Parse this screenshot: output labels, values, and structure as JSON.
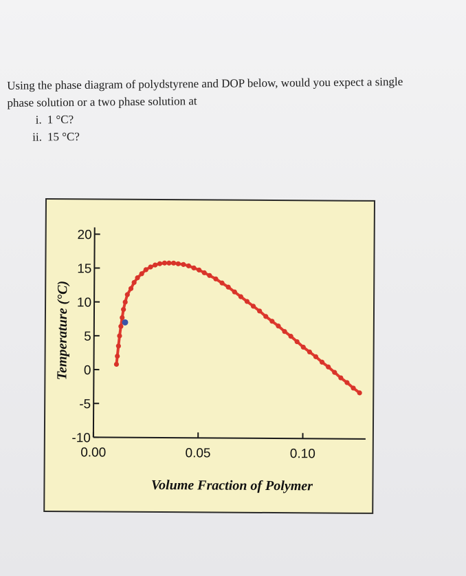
{
  "question": {
    "line1": "Using the phase diagram of polydstyrene and DOP below, would you expect a single",
    "line2": "phase solution or a two phase solution at",
    "items": [
      {
        "num": "i.",
        "text": "1 °C?"
      },
      {
        "num": "ii.",
        "text": "15 °C?"
      }
    ]
  },
  "colors": {
    "curve": "#e03a2e",
    "marker": "#d8342a",
    "highlight_point": "#3a55a8",
    "plot_background": "#f7f2c6"
  },
  "chart_data": {
    "type": "line",
    "title": "",
    "xlabel": "Volume Fraction of Polymer",
    "ylabel": "Temperature (°C)",
    "xlim": [
      0.0,
      0.13
    ],
    "ylim": [
      -10,
      21
    ],
    "x_tick_labels": [
      "0.00",
      "0.05",
      "0.10"
    ],
    "x_tick_values": [
      0.0,
      0.05,
      0.1
    ],
    "y_tick_labels": [
      "20",
      "15",
      "10",
      "5",
      "0",
      "-5",
      "-10"
    ],
    "y_tick_values": [
      20,
      15,
      10,
      5,
      0,
      -5,
      -10
    ],
    "series": [
      {
        "x": [
          0.0108,
          0.0112,
          0.0117,
          0.0122,
          0.0128,
          0.0134,
          0.014,
          0.0148,
          0.0158,
          0.0175,
          0.019,
          0.0206,
          0.0226,
          0.0246,
          0.0268,
          0.029,
          0.0312,
          0.0335,
          0.0356,
          0.0378,
          0.04,
          0.0425,
          0.045,
          0.0475,
          0.05,
          0.0525,
          0.055,
          0.058,
          0.061,
          0.064,
          0.067,
          0.07,
          0.073,
          0.076,
          0.079,
          0.082,
          0.085,
          0.088,
          0.091,
          0.094,
          0.097,
          0.1,
          0.103,
          0.106,
          0.109,
          0.112,
          0.115,
          0.118,
          0.121,
          0.124,
          0.127
        ],
        "y": [
          0.8,
          2.0,
          3.5,
          5.0,
          6.4,
          7.7,
          8.9,
          10.0,
          11.1,
          12.0,
          12.9,
          13.6,
          14.2,
          14.8,
          15.2,
          15.5,
          15.7,
          15.8,
          15.8,
          15.8,
          15.7,
          15.6,
          15.4,
          15.1,
          14.8,
          14.4,
          14.0,
          13.5,
          12.9,
          12.3,
          11.6,
          10.9,
          10.2,
          9.5,
          8.8,
          8.0,
          7.3,
          6.6,
          5.8,
          5.1,
          4.3,
          3.5,
          2.8,
          2.1,
          1.3,
          0.6,
          -0.2,
          -1.0,
          -1.7,
          -2.5,
          -3.2
        ]
      }
    ],
    "highlight_point": {
      "x": 0.0148,
      "y": 7.0
    },
    "grid": false,
    "legend": false
  }
}
